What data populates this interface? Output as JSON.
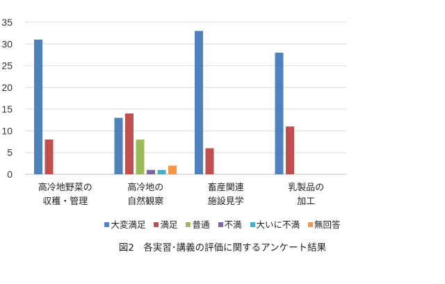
{
  "chart_data": {
    "type": "bar",
    "title": "",
    "xlabel": "",
    "ylabel": "",
    "ylim": [
      0,
      35
    ],
    "yticks": [
      0,
      5,
      10,
      15,
      20,
      25,
      30,
      35
    ],
    "grid": true,
    "legend_placement": "bottom",
    "categories": [
      [
        "高冷地野菜の",
        "収穫・管理"
      ],
      [
        "高冷地の",
        "自然観察"
      ],
      [
        "畜産関連",
        "施設見学"
      ],
      [
        "乳製品の",
        "加工"
      ]
    ],
    "series": [
      {
        "name": "大変満足",
        "color": "#4f81bd",
        "values": [
          31,
          13,
          33,
          28
        ]
      },
      {
        "name": "満足",
        "color": "#c0504d",
        "values": [
          8,
          14,
          6,
          11
        ]
      },
      {
        "name": "普通",
        "color": "#9bbb59",
        "values": [
          0,
          8,
          0,
          0
        ]
      },
      {
        "name": "不満",
        "color": "#8064a2",
        "values": [
          0,
          1,
          0,
          0
        ]
      },
      {
        "name": "大いに不満",
        "color": "#4bacc6",
        "values": [
          0,
          1,
          0,
          0
        ]
      },
      {
        "name": "無回答",
        "color": "#f79646",
        "values": [
          0,
          2,
          0,
          0
        ]
      }
    ]
  },
  "caption": "図2　各実習･講義の評価に関するアンケート結果"
}
